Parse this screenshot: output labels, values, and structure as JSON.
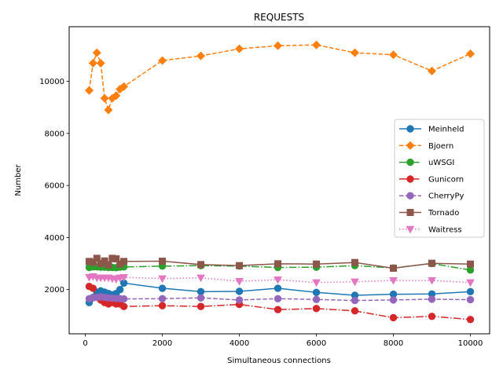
{
  "chart_data": {
    "type": "line",
    "title": "REQUESTS",
    "xlabel": "Simultaneous connections",
    "ylabel": "Number",
    "xlim": [
      -420,
      10500
    ],
    "ylim": [
      300,
      12100
    ],
    "xticks": [
      0,
      2000,
      4000,
      6000,
      8000,
      10000
    ],
    "yticks": [
      2000,
      4000,
      6000,
      8000,
      10000
    ],
    "grid": false,
    "legend_position": "center-right",
    "series": [
      {
        "name": "Meinheld",
        "color": "#1f77b4",
        "dash": "solid",
        "marker": "circle",
        "x": [
          100,
          200,
          300,
          400,
          500,
          600,
          700,
          800,
          900,
          1000,
          2000,
          3000,
          4000,
          5000,
          6000,
          7000,
          8000,
          9000,
          10000
        ],
        "y": [
          1500,
          1700,
          1900,
          1950,
          1900,
          1850,
          1800,
          1850,
          2000,
          2250,
          2050,
          1920,
          1930,
          2050,
          1890,
          1780,
          1820,
          1830,
          1920
        ]
      },
      {
        "name": "Bjoern",
        "color": "#ff7f0e",
        "dash": "dashed",
        "marker": "diamond",
        "x": [
          100,
          200,
          300,
          400,
          500,
          600,
          700,
          800,
          900,
          1000,
          2000,
          3000,
          4000,
          5000,
          6000,
          7000,
          8000,
          9000,
          10000
        ],
        "y": [
          9650,
          10700,
          11100,
          10700,
          9350,
          8900,
          9350,
          9450,
          9700,
          9800,
          10800,
          10980,
          11250,
          11370,
          11400,
          11100,
          11020,
          10400,
          11060
        ]
      },
      {
        "name": "uWSGI",
        "color": "#2ca02c",
        "dash": "dashdot",
        "marker": "circle",
        "x": [
          100,
          200,
          300,
          400,
          500,
          600,
          700,
          800,
          900,
          1000,
          2000,
          3000,
          4000,
          5000,
          6000,
          7000,
          8000,
          9000,
          10000
        ],
        "y": [
          2850,
          2870,
          2870,
          2860,
          2860,
          2850,
          2850,
          2840,
          2860,
          2870,
          2900,
          2920,
          2900,
          2850,
          2860,
          2920,
          2830,
          3000,
          2750
        ]
      },
      {
        "name": "Gunicorn",
        "color": "#d62728",
        "dash": "dashdot",
        "marker": "circle",
        "x": [
          100,
          200,
          300,
          400,
          500,
          600,
          700,
          800,
          900,
          1000,
          2000,
          3000,
          4000,
          5000,
          6000,
          7000,
          8000,
          9000,
          10000
        ],
        "y": [
          2120,
          2050,
          1700,
          1600,
          1500,
          1450,
          1500,
          1450,
          1450,
          1350,
          1380,
          1350,
          1430,
          1230,
          1270,
          1180,
          920,
          970,
          850
        ]
      },
      {
        "name": "CherryPy",
        "color": "#9467bd",
        "dash": "dashed",
        "marker": "circle",
        "x": [
          100,
          200,
          300,
          400,
          500,
          600,
          700,
          800,
          900,
          1000,
          2000,
          3000,
          4000,
          5000,
          6000,
          7000,
          8000,
          9000,
          10000
        ],
        "y": [
          1650,
          1680,
          1700,
          1720,
          1700,
          1680,
          1670,
          1660,
          1650,
          1640,
          1650,
          1680,
          1600,
          1650,
          1620,
          1580,
          1600,
          1630,
          1610
        ]
      },
      {
        "name": "Tornado",
        "color": "#8c564b",
        "dash": "solid",
        "marker": "square",
        "x": [
          100,
          200,
          300,
          400,
          500,
          600,
          700,
          800,
          900,
          1000,
          2000,
          3000,
          4000,
          5000,
          6000,
          7000,
          8000,
          9000,
          10000
        ],
        "y": [
          3080,
          3050,
          3200,
          3000,
          3100,
          2950,
          3200,
          3180,
          2980,
          3080,
          3090,
          2960,
          2920,
          2990,
          2980,
          3040,
          2820,
          3010,
          2980
        ]
      },
      {
        "name": "Waitress",
        "color": "#e377c2",
        "dash": "dotted",
        "marker": "triangle-down",
        "x": [
          100,
          200,
          300,
          400,
          500,
          600,
          700,
          800,
          900,
          1000,
          2000,
          3000,
          4000,
          5000,
          6000,
          7000,
          8000,
          9000,
          10000
        ],
        "y": [
          2470,
          2500,
          2450,
          2450,
          2450,
          2450,
          2420,
          2400,
          2450,
          2470,
          2420,
          2450,
          2320,
          2380,
          2270,
          2300,
          2350,
          2350,
          2270
        ]
      }
    ]
  }
}
